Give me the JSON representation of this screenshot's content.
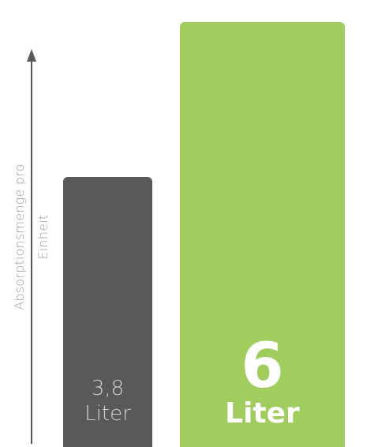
{
  "chart_data": {
    "type": "bar",
    "categories": [
      "",
      ""
    ],
    "values": [
      3.8,
      6
    ],
    "value_labels": [
      {
        "value": "3,8",
        "unit": "Liter"
      },
      {
        "value": "6",
        "unit": "Liter"
      }
    ],
    "ylabel_lines": [
      "Absorptionsmenge pro",
      "Einheit"
    ],
    "ylim": [
      0,
      6.2
    ],
    "colors": [
      "#58595b",
      "#a1cd5e"
    ],
    "axis_color": "#58595b",
    "grid": false,
    "legend": "none"
  }
}
